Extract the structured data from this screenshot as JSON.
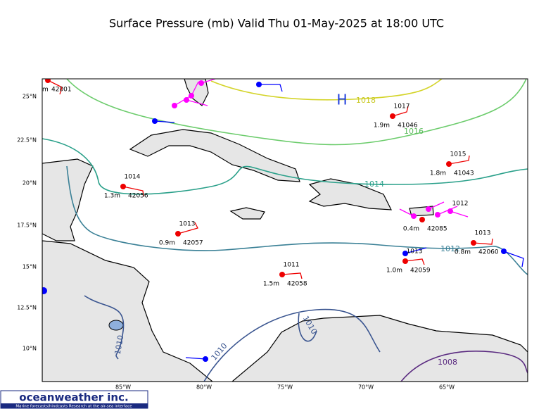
{
  "title": "Surface Pressure (mb) Valid Thu 01-May-2025 at 18:00 UTC",
  "latitude_labels": [
    "25°N",
    "22.5°N",
    "20°N",
    "17.5°N",
    "15°N",
    "12.5°N",
    "10°N"
  ],
  "longitude_labels": [
    "85°W",
    "80°W",
    "75°W",
    "70°W",
    "65°W"
  ],
  "high_label": "H",
  "isobar_labels": [
    "1018",
    "1016",
    "1014",
    "1012",
    "1010",
    "1010",
    "1010",
    "1008"
  ],
  "stations": [
    {
      "wave": "m",
      "id": "42001"
    },
    {
      "pressure": "1017",
      "wave": "1.9m",
      "id": "41046"
    },
    {
      "pressure": "1015",
      "wave": "1.8m",
      "id": "41043"
    },
    {
      "pressure": "1014",
      "wave": "1.3m",
      "id": "42056"
    },
    {
      "pressure": "1013",
      "wave": "0.9m",
      "id": "42057"
    },
    {
      "pressure": "1011",
      "wave": "1.5m",
      "id": "42058"
    },
    {
      "pressure": "1013",
      "wave": "1.0m",
      "id": "42059"
    },
    {
      "pressure": "1013",
      "wave": "0.8m",
      "id": "42060"
    },
    {
      "pressure": "1012",
      "wave": "0.4m",
      "id": "42085"
    }
  ],
  "logo": {
    "name": "oceanweather inc.",
    "tagline": "Marine forecasts/hindcasts   Research at the air-sea interface"
  }
}
